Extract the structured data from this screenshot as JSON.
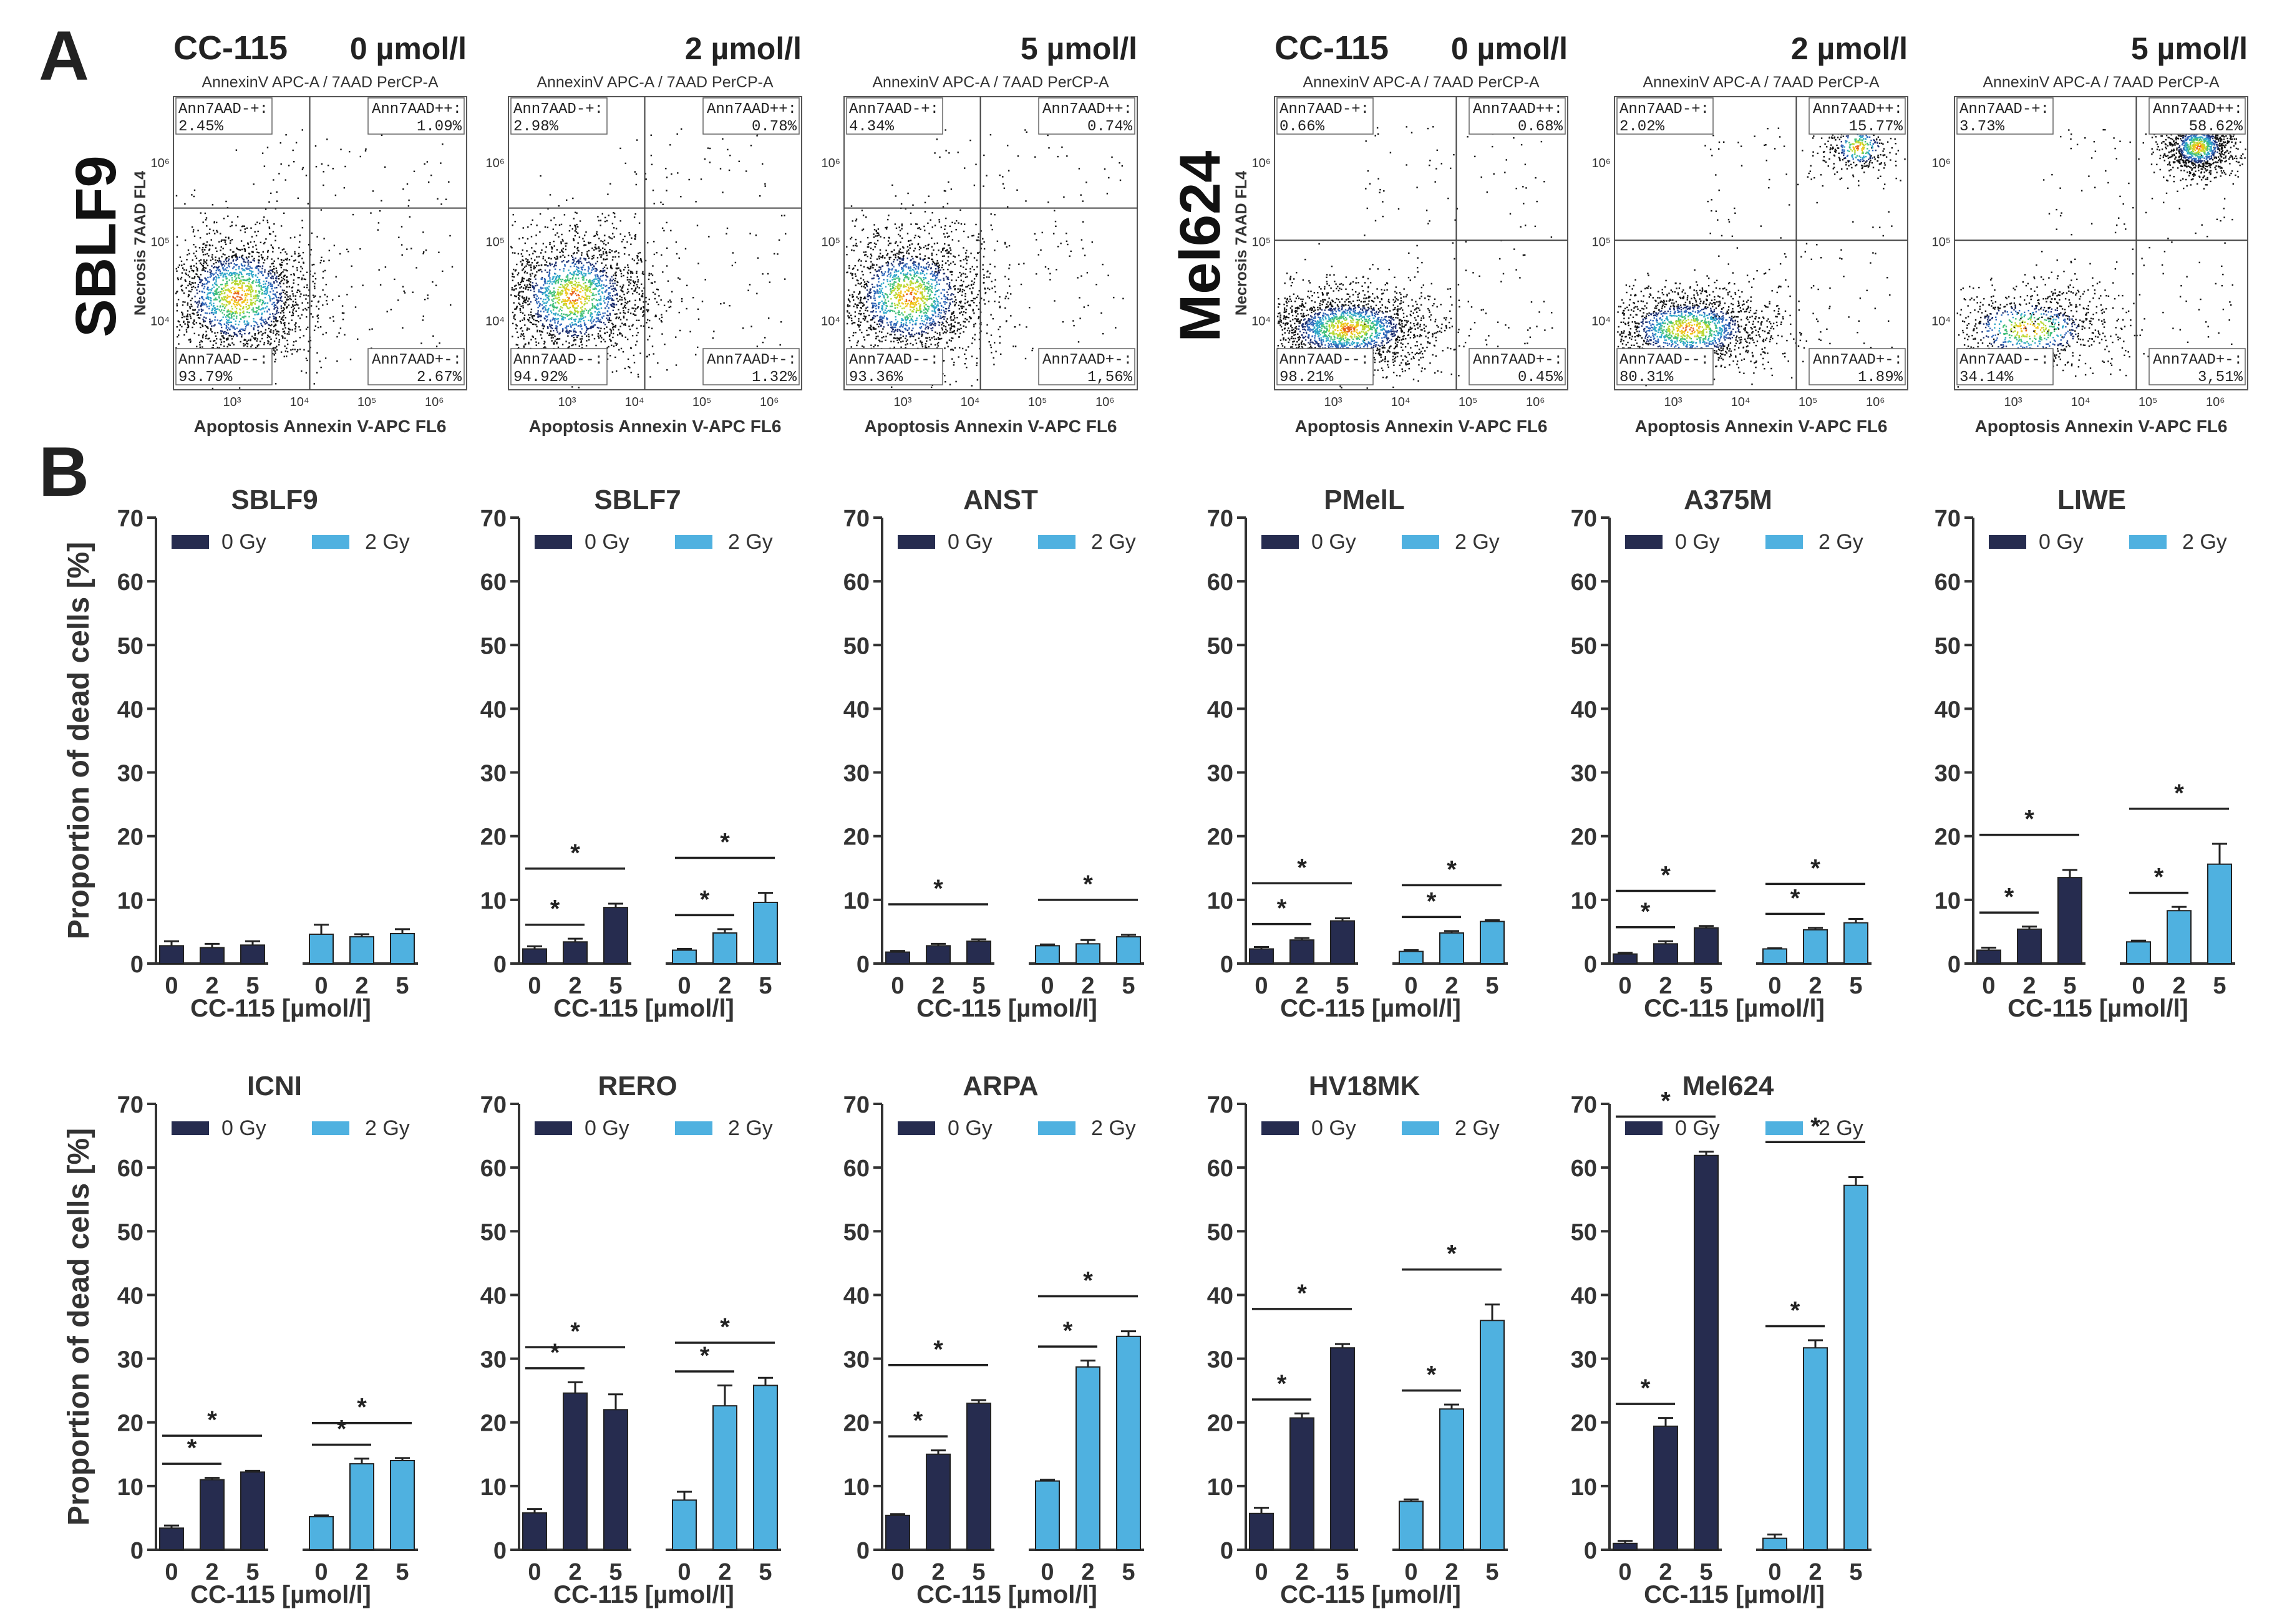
{
  "panel_letters": {
    "a": "A",
    "b": "B"
  },
  "colors": {
    "dark": "#262c4f",
    "light": "#4fb1e0",
    "axis": "#333333"
  },
  "panelA": {
    "row_labels": {
      "left": "SBLF9",
      "right": "Mel624"
    },
    "drug": "CC-115",
    "concentrations": [
      "0 µmol/l",
      "2 µmol/l",
      "5 µmol/l"
    ],
    "plot_title": "AnnexinV APC-A / 7AAD PerCP-A",
    "xlabel": "Apoptosis Annexin V-APC FL6",
    "ylabel": "Necrosis 7AAD FL4",
    "tick_labels": [
      "10³",
      "10⁴",
      "10⁵",
      "10⁶"
    ],
    "plots": [
      {
        "line": "SBLF9",
        "conc": "0 µmol/l",
        "q_tl": "Ann7AAD-+:",
        "v_tl": "2.45%",
        "q_tr": "Ann7AAD++:",
        "v_tr": "1.09%",
        "q_bl": "Ann7AAD--:",
        "v_bl": "93.79%",
        "q_br": "Ann7AAD+-:",
        "v_br": "2.67%"
      },
      {
        "line": "SBLF9",
        "conc": "2 µmol/l",
        "q_tl": "Ann7AAD-+:",
        "v_tl": "2.98%",
        "q_tr": "Ann7AAD++:",
        "v_tr": "0.78%",
        "q_bl": "Ann7AAD--:",
        "v_bl": "94.92%",
        "q_br": "Ann7AAD+-:",
        "v_br": "1.32%"
      },
      {
        "line": "SBLF9",
        "conc": "5 µmol/l",
        "q_tl": "Ann7AAD-+:",
        "v_tl": "4.34%",
        "q_tr": "Ann7AAD++:",
        "v_tr": "0.74%",
        "q_bl": "Ann7AAD--:",
        "v_bl": "93.36%",
        "q_br": "Ann7AAD+-:",
        "v_br": "1,56%"
      },
      {
        "line": "Mel624",
        "conc": "0 µmol/l",
        "q_tl": "Ann7AAD-+:",
        "v_tl": "0.66%",
        "q_tr": "Ann7AAD++:",
        "v_tr": "0.68%",
        "q_bl": "Ann7AAD--:",
        "v_bl": "98.21%",
        "q_br": "Ann7AAD+-:",
        "v_br": "0.45%"
      },
      {
        "line": "Mel624",
        "conc": "2 µmol/l",
        "q_tl": "Ann7AAD-+:",
        "v_tl": "2.02%",
        "q_tr": "Ann7AAD++:",
        "v_tr": "15.77%",
        "q_bl": "Ann7AAD--:",
        "v_bl": "80.31%",
        "q_br": "Ann7AAD+-:",
        "v_br": "1.89%"
      },
      {
        "line": "Mel624",
        "conc": "5 µmol/l",
        "q_tl": "Ann7AAD-+:",
        "v_tl": "3.73%",
        "q_tr": "Ann7AAD++:",
        "v_tr": "58.62%",
        "q_bl": "Ann7AAD--:",
        "v_bl": "34.14%",
        "q_br": "Ann7AAD+-:",
        "v_br": "3,51%"
      }
    ]
  },
  "chart_data": [
    {
      "type": "bar",
      "title": "SBLF9",
      "ylabel": "Proportion of dead cells [%]",
      "xlabel": "CC-115 [µmol/l]",
      "ylim": [
        0,
        70
      ],
      "yticks": [
        0,
        10,
        20,
        30,
        40,
        50,
        60,
        70
      ],
      "categories": [
        "0",
        "2",
        "5"
      ],
      "series": [
        {
          "name": "0 Gy",
          "values": [
            2.8,
            2.5,
            2.9
          ],
          "errors": [
            0.7,
            0.6,
            0.6
          ]
        },
        {
          "name": "2 Gy",
          "values": [
            4.6,
            4.2,
            4.7
          ],
          "errors": [
            1.5,
            0.4,
            0.7
          ]
        }
      ],
      "significance": []
    },
    {
      "type": "bar",
      "title": "SBLF7",
      "ylabel": "",
      "xlabel": "CC-115 [µmol/l]",
      "ylim": [
        0,
        70
      ],
      "yticks": [
        0,
        10,
        20,
        30,
        40,
        50,
        60,
        70
      ],
      "categories": [
        "0",
        "2",
        "5"
      ],
      "series": [
        {
          "name": "0 Gy",
          "values": [
            2.3,
            3.4,
            8.8
          ],
          "errors": [
            0.4,
            0.5,
            0.6
          ]
        },
        {
          "name": "2 Gy",
          "values": [
            2.1,
            4.8,
            9.6
          ],
          "errors": [
            0.2,
            0.6,
            1.5
          ]
        }
      ],
      "significance": [
        {
          "series": 0,
          "from": 0,
          "to": 1,
          "label": "*"
        },
        {
          "series": 0,
          "from": 0,
          "to": 2,
          "label": "*"
        },
        {
          "series": 1,
          "from": 0,
          "to": 1,
          "label": "*"
        },
        {
          "series": 1,
          "from": 0,
          "to": 2,
          "label": "*"
        }
      ]
    },
    {
      "type": "bar",
      "title": "ANST",
      "ylabel": "",
      "xlabel": "CC-115 [µmol/l]",
      "ylim": [
        0,
        70
      ],
      "yticks": [
        0,
        10,
        20,
        30,
        40,
        50,
        60,
        70
      ],
      "categories": [
        "0",
        "2",
        "5"
      ],
      "series": [
        {
          "name": "0 Gy",
          "values": [
            1.8,
            2.8,
            3.5
          ],
          "errors": [
            0.2,
            0.3,
            0.3
          ]
        },
        {
          "name": "2 Gy",
          "values": [
            2.8,
            3.1,
            4.2
          ],
          "errors": [
            0.2,
            0.6,
            0.3
          ]
        }
      ],
      "significance": [
        {
          "series": 0,
          "from": 0,
          "to": 2,
          "label": "*"
        },
        {
          "series": 1,
          "from": 0,
          "to": 2,
          "label": "*"
        }
      ]
    },
    {
      "type": "bar",
      "title": "PMelL",
      "ylabel": "",
      "xlabel": "CC-115 [µmol/l]",
      "ylim": [
        0,
        70
      ],
      "yticks": [
        0,
        10,
        20,
        30,
        40,
        50,
        60,
        70
      ],
      "categories": [
        "0",
        "2",
        "5"
      ],
      "series": [
        {
          "name": "0 Gy",
          "values": [
            2.3,
            3.7,
            6.7
          ],
          "errors": [
            0.3,
            0.3,
            0.4
          ]
        },
        {
          "name": "2 Gy",
          "values": [
            1.9,
            4.8,
            6.6
          ],
          "errors": [
            0.2,
            0.3,
            0.2
          ]
        }
      ],
      "significance": [
        {
          "series": 0,
          "from": 0,
          "to": 1,
          "label": "*"
        },
        {
          "series": 0,
          "from": 0,
          "to": 2,
          "label": "*"
        },
        {
          "series": 1,
          "from": 0,
          "to": 1,
          "label": "*"
        },
        {
          "series": 1,
          "from": 0,
          "to": 2,
          "label": "*"
        }
      ]
    },
    {
      "type": "bar",
      "title": "A375M",
      "ylabel": "",
      "xlabel": "CC-115 [µmol/l]",
      "ylim": [
        0,
        70
      ],
      "yticks": [
        0,
        10,
        20,
        30,
        40,
        50,
        60,
        70
      ],
      "categories": [
        "0",
        "2",
        "5"
      ],
      "series": [
        {
          "name": "0 Gy",
          "values": [
            1.5,
            3.1,
            5.6
          ],
          "errors": [
            0.2,
            0.4,
            0.3
          ]
        },
        {
          "name": "2 Gy",
          "values": [
            2.3,
            5.3,
            6.4
          ],
          "errors": [
            0.1,
            0.3,
            0.6
          ]
        }
      ],
      "significance": [
        {
          "series": 0,
          "from": 0,
          "to": 1,
          "label": "*"
        },
        {
          "series": 0,
          "from": 0,
          "to": 2,
          "label": "*"
        },
        {
          "series": 1,
          "from": 0,
          "to": 1,
          "label": "*"
        },
        {
          "series": 1,
          "from": 0,
          "to": 2,
          "label": "*"
        }
      ]
    },
    {
      "type": "bar",
      "title": "LIWE",
      "ylabel": "",
      "xlabel": "CC-115 [µmol/l]",
      "ylim": [
        0,
        70
      ],
      "yticks": [
        0,
        10,
        20,
        30,
        40,
        50,
        60,
        70
      ],
      "categories": [
        "0",
        "2",
        "5"
      ],
      "series": [
        {
          "name": "0 Gy",
          "values": [
            2.1,
            5.4,
            13.5
          ],
          "errors": [
            0.4,
            0.4,
            1.2
          ]
        },
        {
          "name": "2 Gy",
          "values": [
            3.4,
            8.3,
            15.6
          ],
          "errors": [
            0.2,
            0.6,
            3.2
          ]
        }
      ],
      "significance": [
        {
          "series": 0,
          "from": 0,
          "to": 1,
          "label": "*"
        },
        {
          "series": 0,
          "from": 0,
          "to": 2,
          "label": "*"
        },
        {
          "series": 1,
          "from": 0,
          "to": 1,
          "label": "*"
        },
        {
          "series": 1,
          "from": 0,
          "to": 2,
          "label": "*"
        }
      ]
    },
    {
      "type": "bar",
      "title": "ICNI",
      "ylabel": "Proportion of dead cells [%]",
      "xlabel": "CC-115 [µmol/l]",
      "ylim": [
        0,
        70
      ],
      "yticks": [
        0,
        10,
        20,
        30,
        40,
        50,
        60,
        70
      ],
      "categories": [
        "0",
        "2",
        "5"
      ],
      "series": [
        {
          "name": "0 Gy",
          "values": [
            3.4,
            11.0,
            12.2
          ],
          "errors": [
            0.4,
            0.3,
            0.2
          ]
        },
        {
          "name": "2 Gy",
          "values": [
            5.2,
            13.5,
            14.0
          ],
          "errors": [
            0.2,
            0.8,
            0.4
          ]
        }
      ],
      "significance": [
        {
          "series": 0,
          "from": 0,
          "to": 1,
          "label": "*"
        },
        {
          "series": 0,
          "from": 0,
          "to": 2,
          "label": "*"
        },
        {
          "series": 1,
          "from": 0,
          "to": 1,
          "label": "*"
        },
        {
          "series": 1,
          "from": 0,
          "to": 2,
          "label": "*"
        }
      ]
    },
    {
      "type": "bar",
      "title": "RERO",
      "ylabel": "",
      "xlabel": "CC-115 [µmol/l]",
      "ylim": [
        0,
        70
      ],
      "yticks": [
        0,
        10,
        20,
        30,
        40,
        50,
        60,
        70
      ],
      "categories": [
        "0",
        "2",
        "5"
      ],
      "series": [
        {
          "name": "0 Gy",
          "values": [
            5.8,
            24.6,
            22.0
          ],
          "errors": [
            0.6,
            1.7,
            2.4
          ]
        },
        {
          "name": "2 Gy",
          "values": [
            7.8,
            22.6,
            25.8
          ],
          "errors": [
            1.3,
            3.2,
            1.2
          ]
        }
      ],
      "significance": [
        {
          "series": 0,
          "from": 0,
          "to": 1,
          "label": "*"
        },
        {
          "series": 0,
          "from": 0,
          "to": 2,
          "label": "*"
        },
        {
          "series": 1,
          "from": 0,
          "to": 1,
          "label": "*"
        },
        {
          "series": 1,
          "from": 0,
          "to": 2,
          "label": "*"
        }
      ]
    },
    {
      "type": "bar",
      "title": "ARPA",
      "ylabel": "",
      "xlabel": "CC-115 [µmol/l]",
      "ylim": [
        0,
        70
      ],
      "yticks": [
        0,
        10,
        20,
        30,
        40,
        50,
        60,
        70
      ],
      "categories": [
        "0",
        "2",
        "5"
      ],
      "series": [
        {
          "name": "0 Gy",
          "values": [
            5.4,
            15.0,
            23.0
          ],
          "errors": [
            0.2,
            0.6,
            0.5
          ]
        },
        {
          "name": "2 Gy",
          "values": [
            10.8,
            28.7,
            33.5
          ],
          "errors": [
            0.2,
            1.0,
            0.8
          ]
        }
      ],
      "significance": [
        {
          "series": 0,
          "from": 0,
          "to": 1,
          "label": "*"
        },
        {
          "series": 0,
          "from": 0,
          "to": 2,
          "label": "*"
        },
        {
          "series": 1,
          "from": 0,
          "to": 1,
          "label": "*"
        },
        {
          "series": 1,
          "from": 0,
          "to": 2,
          "label": "*"
        }
      ]
    },
    {
      "type": "bar",
      "title": "HV18MK",
      "ylabel": "",
      "xlabel": "CC-115 [µmol/l]",
      "ylim": [
        0,
        70
      ],
      "yticks": [
        0,
        10,
        20,
        30,
        40,
        50,
        60,
        70
      ],
      "categories": [
        "0",
        "2",
        "5"
      ],
      "series": [
        {
          "name": "0 Gy",
          "values": [
            5.7,
            20.7,
            31.7
          ],
          "errors": [
            0.9,
            0.7,
            0.6
          ]
        },
        {
          "name": "2 Gy",
          "values": [
            7.6,
            22.1,
            36.0
          ],
          "errors": [
            0.3,
            0.7,
            2.5
          ]
        }
      ],
      "significance": [
        {
          "series": 0,
          "from": 0,
          "to": 1,
          "label": "*"
        },
        {
          "series": 0,
          "from": 0,
          "to": 2,
          "label": "*"
        },
        {
          "series": 1,
          "from": 0,
          "to": 1,
          "label": "*"
        },
        {
          "series": 1,
          "from": 0,
          "to": 2,
          "label": "*"
        }
      ]
    },
    {
      "type": "bar",
      "title": "Mel624",
      "ylabel": "",
      "xlabel": "CC-115 [µmol/l]",
      "ylim": [
        0,
        70
      ],
      "yticks": [
        0,
        10,
        20,
        30,
        40,
        50,
        60,
        70
      ],
      "categories": [
        "0",
        "2",
        "5"
      ],
      "series": [
        {
          "name": "0 Gy",
          "values": [
            1.0,
            19.4,
            61.9
          ],
          "errors": [
            0.4,
            1.3,
            0.6
          ]
        },
        {
          "name": "2 Gy",
          "values": [
            1.8,
            31.7,
            57.2
          ],
          "errors": [
            0.6,
            1.2,
            1.3
          ]
        }
      ],
      "significance": [
        {
          "series": 0,
          "from": 0,
          "to": 1,
          "label": "*"
        },
        {
          "series": 0,
          "from": 0,
          "to": 2,
          "label": "*"
        },
        {
          "series": 1,
          "from": 0,
          "to": 1,
          "label": "*"
        },
        {
          "series": 1,
          "from": 0,
          "to": 2,
          "label": "*"
        }
      ]
    }
  ]
}
